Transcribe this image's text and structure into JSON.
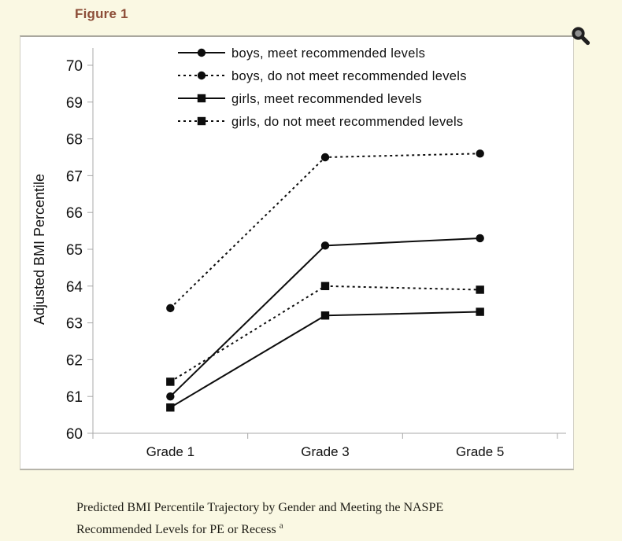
{
  "page": {
    "figure_label": "Figure 1",
    "background_color": "#FAF8E3",
    "figure_label_color": "#8C4D37"
  },
  "zoom_control": {
    "icon": "magnifier-icon"
  },
  "caption": {
    "line1": "Predicted BMI Percentile Trajectory by Gender and Meeting the NASPE",
    "line2": "Recommended Levels for PE or Recess",
    "footnote_marker": "a"
  },
  "chart_data": {
    "type": "line",
    "title": "",
    "xlabel": "",
    "ylabel": "Adjusted BMI Percentile",
    "categories": [
      "Grade 1",
      "Grade 3",
      "Grade 5"
    ],
    "ylim": [
      60,
      70
    ],
    "ytick_step": 1,
    "grid": false,
    "legend_position": "top-inside",
    "line_color": "#0d0d0d",
    "axis_color": "#a8a8a8",
    "series": [
      {
        "name": "boys, meet recommended levels",
        "marker": "circle",
        "line_style": "solid",
        "values": [
          61.0,
          65.1,
          65.3
        ]
      },
      {
        "name": "boys, do not meet recommended levels",
        "marker": "circle",
        "line_style": "dotted",
        "values": [
          63.4,
          67.5,
          67.6
        ]
      },
      {
        "name": "girls, meet recommended levels",
        "marker": "square",
        "line_style": "solid",
        "values": [
          60.7,
          63.2,
          63.3
        ]
      },
      {
        "name": "girls, do not meet recommended levels",
        "marker": "square",
        "line_style": "dotted",
        "values": [
          61.4,
          64.0,
          63.9
        ]
      }
    ]
  }
}
